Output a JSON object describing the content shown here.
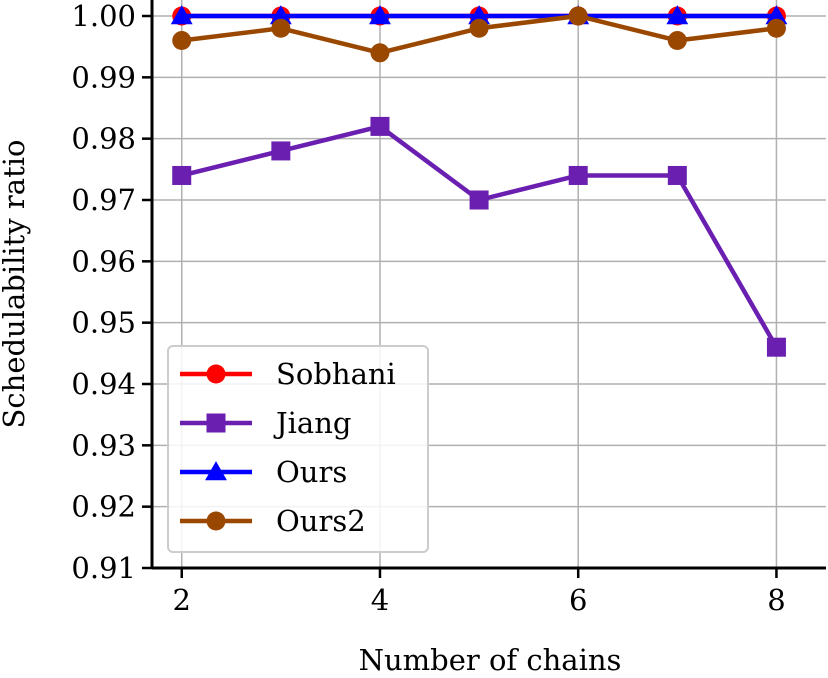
{
  "chart_data": {
    "type": "line",
    "title": "",
    "xlabel": "Number of chains",
    "ylabel": "Schedulability ratio",
    "x": [
      2,
      3,
      4,
      5,
      6,
      7,
      8
    ],
    "xlim": [
      1.7,
      8.5
    ],
    "ylim": [
      0.91,
      1.0
    ],
    "xticks": [
      2,
      4,
      6,
      8
    ],
    "xtick_labels": [
      "2",
      "4",
      "6",
      "8"
    ],
    "yticks": [
      0.91,
      0.92,
      0.93,
      0.94,
      0.95,
      0.96,
      0.97,
      0.98,
      0.99,
      1.0
    ],
    "ytick_labels": [
      "0.91",
      "0.92",
      "0.93",
      "0.94",
      "0.95",
      "0.96",
      "0.97",
      "0.98",
      "0.99",
      "1.00"
    ],
    "grid": true,
    "legend_position": "lower-left",
    "series": [
      {
        "name": "Sobhani",
        "color": "#ff0000",
        "marker": "circle",
        "values": [
          1.0,
          1.0,
          1.0,
          1.0,
          1.0,
          1.0,
          1.0
        ]
      },
      {
        "name": "Jiang",
        "color": "#6a1fb0",
        "marker": "square",
        "values": [
          0.974,
          0.978,
          0.982,
          0.97,
          0.974,
          0.974,
          0.946
        ]
      },
      {
        "name": "Ours",
        "color": "#0000ff",
        "marker": "triangle",
        "values": [
          1.0,
          1.0,
          1.0,
          1.0,
          1.0,
          1.0,
          1.0
        ]
      },
      {
        "name": "Ours2",
        "color": "#9a4800",
        "marker": "circle",
        "values": [
          0.996,
          0.998,
          0.994,
          0.998,
          1.0,
          0.996,
          0.998
        ]
      }
    ]
  }
}
